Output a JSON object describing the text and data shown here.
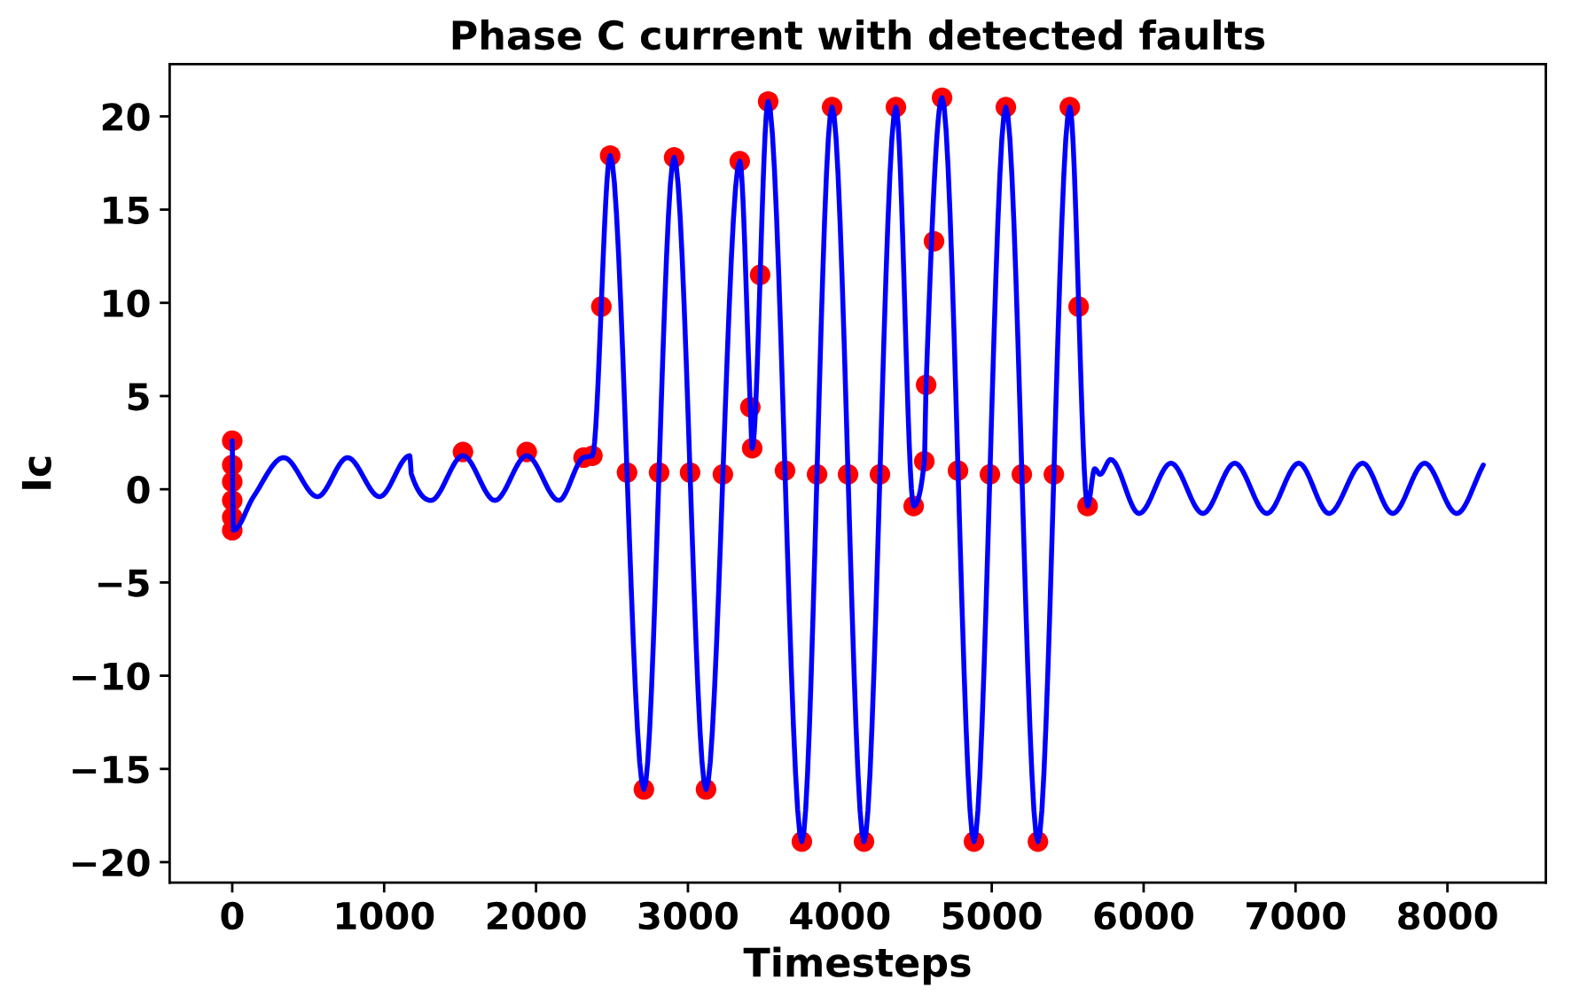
{
  "chart_data": {
    "type": "line",
    "title": "Phase C current with detected faults",
    "xlabel": "Timesteps",
    "ylabel": "Ic",
    "xlim": [
      -412,
      8648
    ],
    "xticks": [
      0,
      1000,
      2000,
      3000,
      4000,
      5000,
      6000,
      7000,
      8000
    ],
    "ylim": [
      -21.1,
      22.8
    ],
    "yticks": [
      -20,
      -15,
      -10,
      -5,
      0,
      5,
      10,
      15,
      20
    ],
    "grid": false,
    "legend": false,
    "marker": "none",
    "line_style": "solid",
    "series": [
      {
        "type": "scatter",
        "color": "#ff0000",
        "marker": "circle",
        "x": [
          0,
          0,
          0,
          0,
          0,
          0,
          1519,
          1939,
          2313,
          2371,
          2430,
          2488,
          2599,
          2710,
          2810,
          2909,
          3014,
          3119,
          3230,
          3341,
          3411,
          3423,
          3475,
          3528,
          3639,
          3750,
          3850,
          3949,
          4054,
          4159,
          4264,
          4369,
          4486,
          4556,
          4568,
          4620,
          4673,
          4778,
          4883,
          4988,
          5093,
          5198,
          5304,
          5409,
          5514,
          5572,
          5631
        ],
        "values": [
          2.6,
          1.3,
          0.4,
          -0.6,
          -1.5,
          -2.2,
          2.0,
          2.0,
          1.7,
          1.8,
          9.8,
          17.9,
          0.9,
          -16.1,
          0.9,
          17.8,
          0.9,
          -16.1,
          0.8,
          17.6,
          4.4,
          2.2,
          11.5,
          20.8,
          1.0,
          -18.9,
          0.8,
          20.5,
          0.8,
          -18.9,
          0.8,
          20.5,
          -0.9,
          1.5,
          5.6,
          13.3,
          21.0,
          1.0,
          -18.9,
          0.8,
          20.5,
          0.8,
          -18.9,
          0.8,
          20.5,
          9.8,
          -0.9
        ]
      },
      {
        "color": "#0000ff",
        "x": [
          0,
          8,
          140,
          339,
          561,
          759,
          970,
          1168,
          1180,
          1308,
          1519,
          1729,
          1939,
          2150,
          2313,
          2371,
          2488,
          2710,
          2909,
          3119,
          3341,
          3411,
          3423,
          3528,
          3750,
          3949,
          4159,
          4369,
          4486,
          4556,
          4568,
          4673,
          4883,
          5093,
          5304,
          5514,
          5631,
          5678,
          5713,
          5783,
          5970,
          6180,
          6390,
          6600,
          6811,
          7021,
          7220,
          7442,
          7640,
          7850,
          8061,
          8236
        ],
        "values": [
          2.6,
          -2.2,
          -0.4,
          1.7,
          -0.4,
          1.7,
          -0.4,
          1.8,
          0.8,
          -0.6,
          1.8,
          -0.6,
          1.8,
          -0.6,
          1.7,
          1.8,
          17.9,
          -16.1,
          17.8,
          -16.1,
          17.6,
          4.4,
          2.2,
          20.8,
          -18.9,
          20.5,
          -18.9,
          20.5,
          -0.9,
          1.5,
          5.6,
          21.0,
          -18.9,
          20.5,
          -18.9,
          20.5,
          -0.9,
          1.1,
          0.8,
          1.6,
          -1.3,
          1.4,
          -1.3,
          1.4,
          -1.3,
          1.4,
          -1.3,
          1.4,
          -1.3,
          1.4,
          -1.3,
          1.3
        ]
      }
    ]
  }
}
